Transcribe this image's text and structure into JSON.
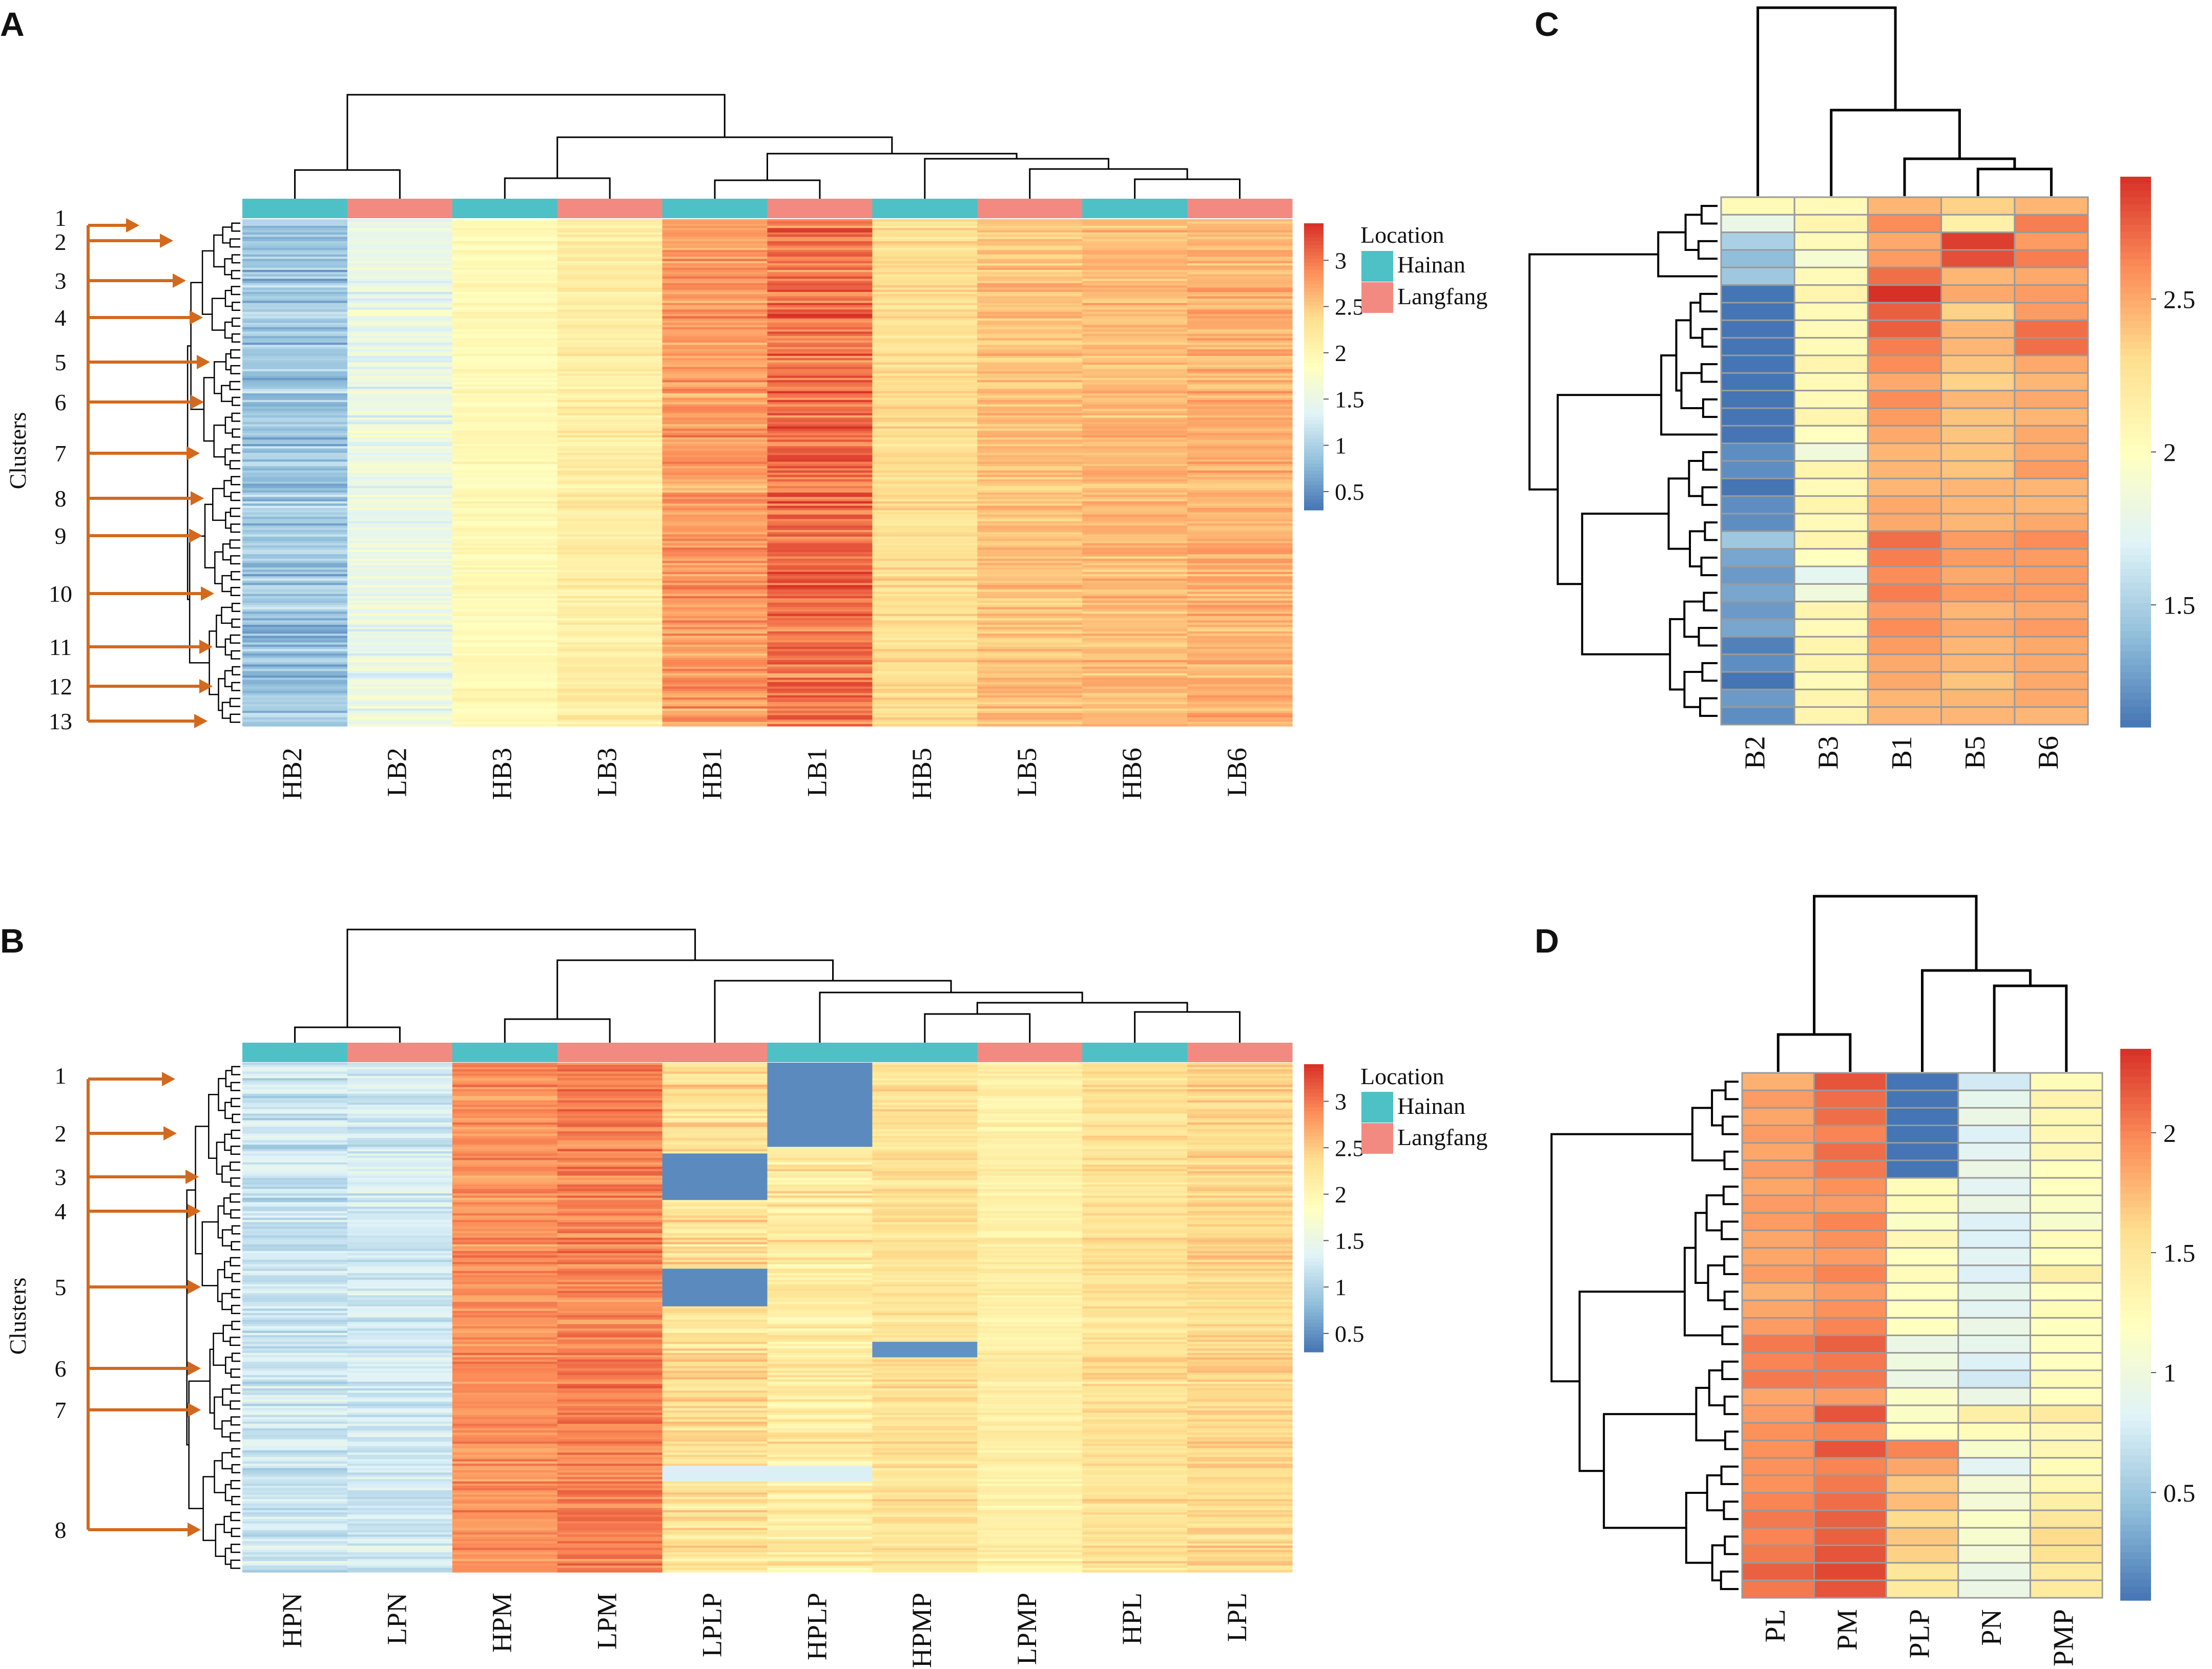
{
  "figure": {
    "colorscale": [
      "#4575b4",
      "#91bfdb",
      "#e0f3f8",
      "#ffffbf",
      "#fee090",
      "#fc8d59",
      "#d73027"
    ],
    "tree_color": "#000000",
    "arrow_color": "#d2691e",
    "cell_border_color": "#9a9a9a",
    "location_colors": {
      "Hainan": "#4dc1c5",
      "Langfang": "#f28a82"
    }
  },
  "chart_data": [
    {
      "panel": "A",
      "type": "heatmap",
      "y_axis_label": "Clusters",
      "columns": [
        "HB2",
        "LB2",
        "HB3",
        "LB3",
        "HB1",
        "LB1",
        "HB5",
        "LB5",
        "HB6",
        "LB6"
      ],
      "column_locations": [
        "Hainan",
        "Langfang",
        "Hainan",
        "Langfang",
        "Hainan",
        "Langfang",
        "Hainan",
        "Langfang",
        "Hainan",
        "Langfang"
      ],
      "column_means": [
        0.9,
        1.5,
        1.95,
        2.15,
        2.8,
        3.05,
        2.35,
        2.55,
        2.6,
        2.65
      ],
      "column_spread": [
        0.3,
        0.25,
        0.15,
        0.18,
        0.25,
        0.3,
        0.2,
        0.18,
        0.18,
        0.2
      ],
      "n_rows": 230,
      "clusters": [
        "1",
        "2",
        "3",
        "4",
        "5",
        "6",
        "7",
        "8",
        "9",
        "10",
        "11",
        "12",
        "13"
      ],
      "color_range": [
        0.3,
        3.4
      ],
      "colorbar_ticks": [
        "3",
        "2.5",
        "2",
        "1.5",
        "1",
        "0.5"
      ],
      "colorbar_tick_values": [
        3,
        2.5,
        2,
        1.5,
        1,
        0.5
      ],
      "legend_title": "Location",
      "legend_entries": [
        "Hainan",
        "Langfang"
      ]
    },
    {
      "panel": "B",
      "type": "heatmap",
      "y_axis_label": "Clusters",
      "columns": [
        "HPN",
        "LPN",
        "HPM",
        "LPM",
        "LPLP",
        "HPLP",
        "HPMP",
        "LPMP",
        "HPL",
        "LPL"
      ],
      "column_locations": [
        "Hainan",
        "Langfang",
        "Hainan",
        "Langfang",
        "Langfang",
        "Hainan",
        "Hainan",
        "Langfang",
        "Hainan",
        "Langfang"
      ],
      "column_means": [
        1.2,
        1.25,
        2.85,
        2.95,
        2.3,
        2.15,
        2.3,
        2.1,
        2.3,
        2.4
      ],
      "column_spread": [
        0.25,
        0.22,
        0.2,
        0.22,
        0.3,
        0.3,
        0.2,
        0.18,
        0.2,
        0.2
      ],
      "n_rows": 230,
      "clusters": [
        "1",
        "2",
        "3",
        "4",
        "5",
        "6",
        "7",
        "8"
      ],
      "color_range": [
        0.3,
        3.4
      ],
      "colorbar_ticks": [
        "3",
        "2.5",
        "2",
        "1.5",
        "1",
        "0.5"
      ],
      "colorbar_tick_values": [
        3,
        2.5,
        2,
        1.5,
        1,
        0.5
      ],
      "legend_title": "Location",
      "legend_entries": [
        "Hainan",
        "Langfang"
      ]
    },
    {
      "panel": "C",
      "type": "heatmap",
      "columns": [
        "B2",
        "B3",
        "B1",
        "B5",
        "B6"
      ],
      "n_rows": 30,
      "values": [
        [
          2.05,
          2.05,
          2.45,
          2.35,
          2.45
        ],
        [
          1.8,
          2.1,
          2.6,
          2.15,
          2.65
        ],
        [
          1.5,
          2.05,
          2.5,
          2.85,
          2.55
        ],
        [
          1.4,
          1.9,
          2.55,
          2.8,
          2.65
        ],
        [
          1.45,
          2.05,
          2.7,
          2.45,
          2.5
        ],
        [
          1.1,
          2.1,
          2.9,
          2.5,
          2.55
        ],
        [
          1.1,
          2.05,
          2.75,
          2.35,
          2.55
        ],
        [
          1.05,
          2.05,
          2.75,
          2.45,
          2.7
        ],
        [
          1.05,
          2.05,
          2.65,
          2.45,
          2.7
        ],
        [
          1.1,
          2.1,
          2.6,
          2.4,
          2.5
        ],
        [
          1.05,
          2.05,
          2.5,
          2.35,
          2.45
        ],
        [
          1.1,
          2.05,
          2.6,
          2.45,
          2.5
        ],
        [
          1.05,
          2.1,
          2.55,
          2.4,
          2.45
        ],
        [
          1.1,
          2.0,
          2.5,
          2.4,
          2.5
        ],
        [
          1.2,
          1.85,
          2.45,
          2.4,
          2.5
        ],
        [
          1.2,
          2.1,
          2.45,
          2.4,
          2.55
        ],
        [
          1.1,
          2.05,
          2.45,
          2.45,
          2.45
        ],
        [
          1.2,
          2.1,
          2.5,
          2.45,
          2.45
        ],
        [
          1.2,
          2.05,
          2.5,
          2.45,
          2.5
        ],
        [
          1.45,
          2.1,
          2.7,
          2.55,
          2.6
        ],
        [
          1.3,
          2.0,
          2.65,
          2.55,
          2.55
        ],
        [
          1.25,
          1.75,
          2.6,
          2.5,
          2.55
        ],
        [
          1.3,
          1.85,
          2.65,
          2.55,
          2.55
        ],
        [
          1.25,
          2.1,
          2.55,
          2.45,
          2.5
        ],
        [
          1.3,
          2.05,
          2.6,
          2.5,
          2.55
        ],
        [
          1.15,
          2.1,
          2.55,
          2.45,
          2.5
        ],
        [
          1.2,
          2.1,
          2.5,
          2.45,
          2.5
        ],
        [
          1.1,
          2.05,
          2.5,
          2.4,
          2.5
        ],
        [
          1.25,
          2.1,
          2.45,
          2.45,
          2.5
        ],
        [
          1.2,
          2.1,
          2.45,
          2.45,
          2.45
        ]
      ],
      "color_range": [
        1.1,
        2.9
      ],
      "colorbar_ticks": [
        "2.5",
        "2",
        "1.5"
      ],
      "colorbar_tick_values": [
        2.5,
        2,
        1.5
      ]
    },
    {
      "panel": "D",
      "type": "heatmap",
      "columns": [
        "PL",
        "PM",
        "PLP",
        "PN",
        "PMP"
      ],
      "n_rows": 30,
      "values": [
        [
          1.8,
          2.2,
          0.05,
          0.75,
          1.25
        ],
        [
          1.9,
          2.1,
          0.05,
          0.9,
          1.35
        ],
        [
          1.85,
          2.1,
          0.05,
          0.95,
          1.3
        ],
        [
          1.9,
          2.0,
          0.05,
          0.8,
          1.3
        ],
        [
          1.85,
          2.1,
          0.05,
          0.85,
          1.3
        ],
        [
          1.9,
          2.05,
          0.05,
          0.95,
          1.2
        ],
        [
          1.85,
          1.95,
          1.25,
          0.85,
          1.2
        ],
        [
          1.9,
          1.9,
          1.25,
          0.95,
          1.15
        ],
        [
          1.9,
          2.0,
          1.15,
          0.8,
          1.1
        ],
        [
          1.85,
          1.95,
          1.3,
          0.8,
          1.25
        ],
        [
          1.85,
          1.9,
          1.2,
          0.85,
          1.2
        ],
        [
          1.9,
          2.0,
          1.25,
          0.8,
          1.4
        ],
        [
          1.8,
          1.9,
          1.2,
          0.9,
          1.2
        ],
        [
          1.85,
          1.95,
          1.2,
          0.85,
          1.25
        ],
        [
          1.9,
          2.0,
          1.2,
          0.95,
          1.2
        ],
        [
          2.05,
          2.15,
          0.95,
          0.9,
          1.2
        ],
        [
          2.0,
          2.05,
          1.0,
          0.8,
          1.2
        ],
        [
          2.05,
          2.05,
          0.95,
          0.75,
          1.25
        ],
        [
          1.85,
          1.9,
          1.15,
          0.95,
          1.2
        ],
        [
          1.9,
          2.2,
          1.15,
          1.4,
          1.45
        ],
        [
          1.95,
          2.0,
          1.2,
          1.25,
          1.3
        ],
        [
          1.95,
          2.2,
          2.0,
          1.1,
          1.3
        ],
        [
          1.95,
          2.0,
          1.85,
          0.85,
          1.25
        ],
        [
          1.95,
          2.05,
          1.7,
          1.05,
          1.3
        ],
        [
          2.0,
          2.1,
          1.75,
          1.05,
          1.4
        ],
        [
          2.05,
          2.15,
          1.6,
          1.15,
          1.5
        ],
        [
          2.0,
          2.15,
          1.7,
          1.1,
          1.6
        ],
        [
          2.05,
          2.2,
          1.65,
          1.05,
          1.55
        ],
        [
          2.15,
          2.25,
          1.5,
          0.95,
          1.45
        ],
        [
          2.05,
          2.2,
          1.45,
          0.95,
          1.45
        ]
      ],
      "color_range": [
        0.05,
        2.35
      ],
      "colorbar_ticks": [
        "2",
        "1.5",
        "1",
        "0.5"
      ],
      "colorbar_tick_values": [
        2,
        1.5,
        1,
        0.5
      ]
    }
  ]
}
